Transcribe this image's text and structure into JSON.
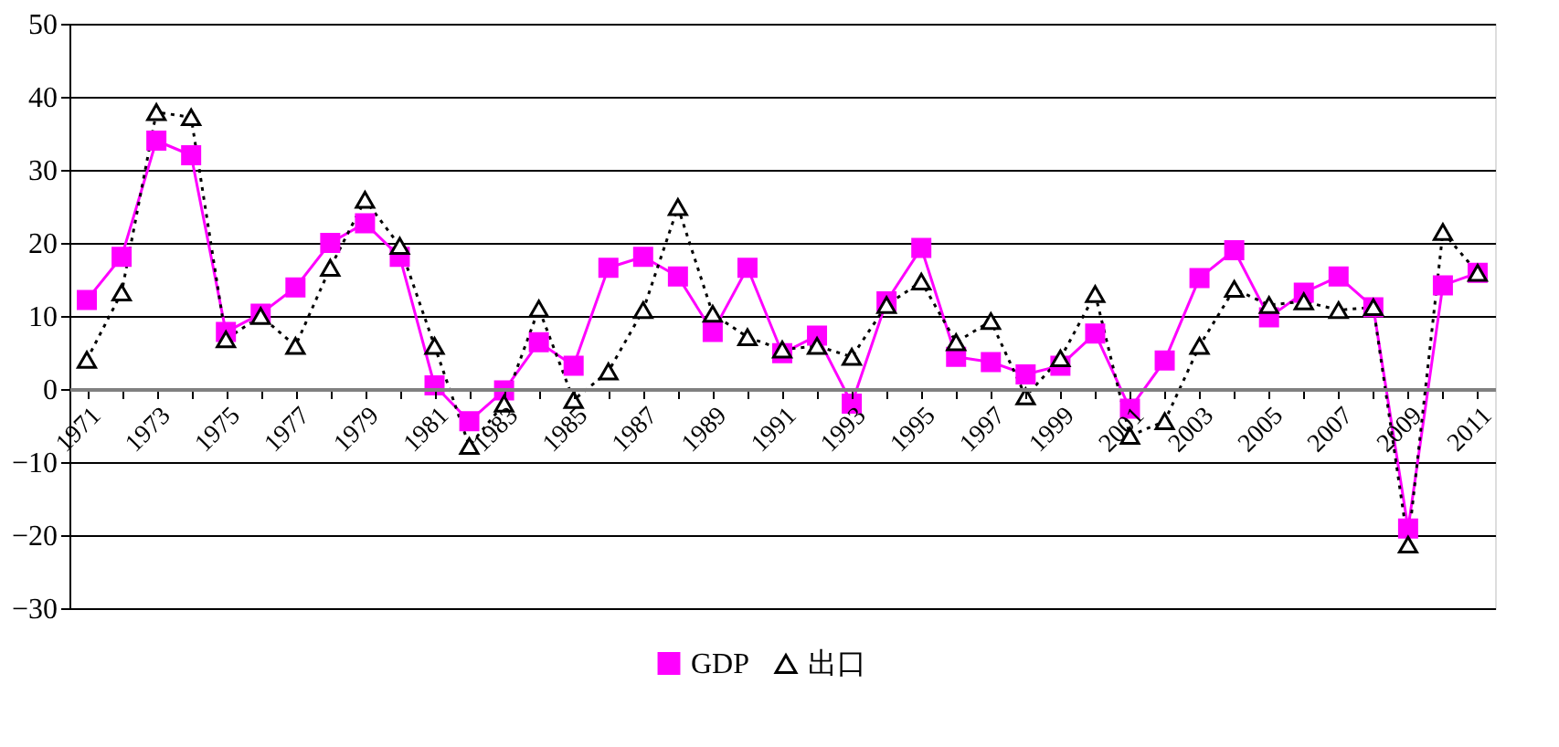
{
  "chart_data": {
    "type": "line",
    "categories": [
      "1971",
      null,
      "1973",
      null,
      "1975",
      null,
      "1977",
      null,
      "1979",
      null,
      "1981",
      null,
      "1983",
      null,
      "1985",
      null,
      "1987",
      null,
      "1989",
      null,
      "1991",
      null,
      "1993",
      null,
      "1995",
      null,
      "1997",
      null,
      "1999",
      null,
      "2001",
      null,
      "2003",
      null,
      "2005",
      null,
      "2007",
      null,
      "2009",
      null,
      "2011"
    ],
    "series": [
      {
        "name": "GDP",
        "color": "#ff00ff",
        "marker": "square",
        "line_style": "solid",
        "values": [
          12.2,
          18.1,
          34,
          32,
          7.8,
          10.3,
          13.9,
          20,
          22.7,
          18.1,
          0.5,
          -4.4,
          -0.2,
          6.4,
          3.2,
          16.6,
          18.1,
          15.4,
          7.8,
          16.6,
          4.9,
          7.3,
          -2,
          12,
          19.3,
          4.4,
          3.7,
          2,
          3.2,
          7.6,
          -2.7,
          3.9,
          15.2,
          19,
          9.8,
          13.2,
          15.4,
          11.2,
          -19.1,
          14.2,
          15.9
        ]
      },
      {
        "name": "出口",
        "color": "#000000",
        "marker": "triangle",
        "line_style": "dotted",
        "values": [
          4,
          13.2,
          37.9,
          37.2,
          6.8,
          10,
          5.9,
          16.6,
          25.9,
          19.6,
          5.9,
          -7.8,
          -2,
          11,
          -1.5,
          2.4,
          10.8,
          24.9,
          10.3,
          7.1,
          5.4,
          5.9,
          4.4,
          11.5,
          14.7,
          6.4,
          9.3,
          -1,
          4.2,
          13,
          -6.4,
          -4.4,
          5.9,
          13.7,
          11.5,
          12,
          10.8,
          11.2,
          -21.3,
          21.5,
          15.9
        ]
      }
    ],
    "ylim": [
      -30,
      50
    ],
    "yticks": [
      -30,
      -20,
      -10,
      0,
      10,
      20,
      30,
      40,
      50
    ],
    "grid": "y",
    "legend": "bottom"
  }
}
